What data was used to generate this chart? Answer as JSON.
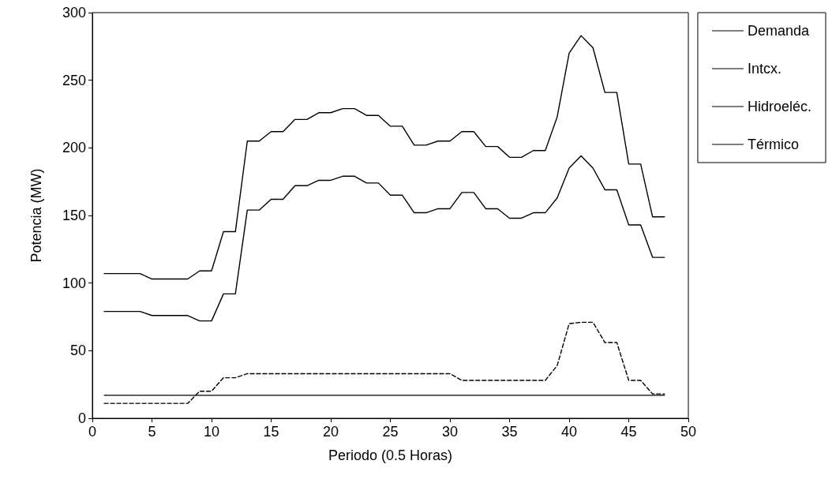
{
  "chart_data": {
    "type": "line",
    "xlabel": "Periodo (0.5 Horas)",
    "ylabel": "Potencia (MW)",
    "x": [
      1,
      2,
      3,
      4,
      5,
      6,
      7,
      8,
      9,
      10,
      11,
      12,
      13,
      14,
      15,
      16,
      17,
      18,
      19,
      20,
      21,
      22,
      23,
      24,
      25,
      26,
      27,
      28,
      29,
      30,
      31,
      32,
      33,
      34,
      35,
      36,
      37,
      38,
      39,
      40,
      41,
      42,
      43,
      44,
      45,
      46,
      47,
      48
    ],
    "series": [
      {
        "name": "Demanda",
        "color": "#000000",
        "line_style": "solid",
        "values": [
          107,
          107,
          107,
          107,
          103,
          103,
          103,
          103,
          109,
          109,
          138,
          138,
          205,
          205,
          212,
          212,
          221,
          221,
          226,
          226,
          229,
          229,
          224,
          224,
          216,
          216,
          202,
          202,
          205,
          205,
          212,
          212,
          201,
          201,
          193,
          193,
          198,
          198,
          223,
          270,
          283,
          274,
          241,
          241,
          188,
          188,
          149,
          149
        ]
      },
      {
        "name": "Intcx.",
        "color": "#000000",
        "line_style": "solid",
        "values": [
          79,
          79,
          79,
          79,
          76,
          76,
          76,
          76,
          72,
          72,
          92,
          92,
          154,
          154,
          162,
          162,
          172,
          172,
          176,
          176,
          179,
          179,
          174,
          174,
          165,
          165,
          152,
          152,
          155,
          155,
          167,
          167,
          155,
          155,
          148,
          148,
          152,
          152,
          163,
          185,
          194,
          185,
          169,
          169,
          143,
          143,
          119,
          119
        ]
      },
      {
        "name": "Hidroeléc.",
        "color": "#000000",
        "line_style": "dashed",
        "values": [
          11,
          11,
          11,
          11,
          11,
          11,
          11,
          11,
          20,
          20,
          30,
          30,
          33,
          33,
          33,
          33,
          33,
          33,
          33,
          33,
          33,
          33,
          33,
          33,
          33,
          33,
          33,
          33,
          33,
          33,
          28,
          28,
          28,
          28,
          28,
          28,
          28,
          28,
          39,
          70,
          71,
          71,
          56,
          56,
          28,
          28,
          18,
          18
        ]
      },
      {
        "name": "Térmico",
        "color": "#000000",
        "line_style": "solid",
        "values": [
          17,
          17,
          17,
          17,
          17,
          17,
          17,
          17,
          17,
          17,
          17,
          17,
          17,
          17,
          17,
          17,
          17,
          17,
          17,
          17,
          17,
          17,
          17,
          17,
          17,
          17,
          17,
          17,
          17,
          17,
          17,
          17,
          17,
          17,
          17,
          17,
          17,
          17,
          17,
          17,
          17,
          17,
          17,
          17,
          17,
          17,
          17,
          17
        ]
      }
    ],
    "xlim": [
      0,
      50
    ],
    "xticks": [
      0,
      5,
      10,
      15,
      20,
      25,
      30,
      35,
      40,
      45,
      50
    ],
    "ylim": [
      0,
      300
    ],
    "yticks": [
      0,
      50,
      100,
      150,
      200,
      250,
      300
    ],
    "grid": false,
    "legend": "right",
    "marker": "none"
  }
}
